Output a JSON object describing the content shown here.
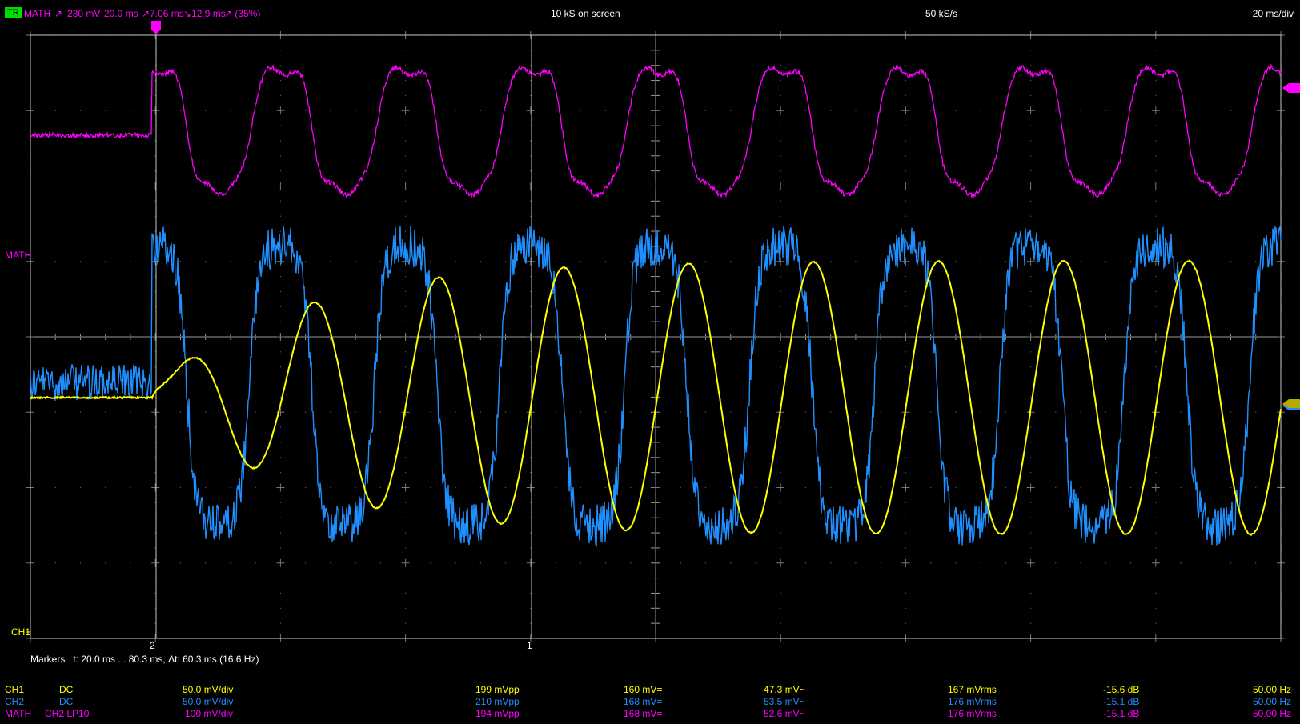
{
  "status": {
    "trigger_badge": "TR",
    "trigger_source": "MATH",
    "trigger_slope_icon": "rising-edge-icon",
    "trigger_level": "230 mV",
    "trigger_time": "20.0 ms",
    "rise_time": "↗7.06 ms",
    "fall_time": "↘12.9 ms",
    "duty_cycle": "↗ (35%)",
    "samples_on_screen": "10 kS on screen",
    "sample_rate": "50 kS/s",
    "timebase": "20 ms/div"
  },
  "labels": {
    "math_label": "MATH",
    "ch1_label": "CH1",
    "marker_2": "2",
    "marker_1": "1"
  },
  "markers_line": {
    "title": "Markers",
    "range": "t: 20.0 ms ... 80.3 ms,  Δt: 60.3 ms (16.6 Hz)"
  },
  "colors": {
    "ch1": "#ffff00",
    "ch2": "#1e90ff",
    "math": "#ff00ff",
    "grid": "#c8c8c8",
    "trigger_badge": "#00e000"
  },
  "measurements": [
    {
      "channel": "CH1",
      "coupling": "DC",
      "scale": "50.0 mV/div",
      "vpp": "199 mVpp",
      "vdc": "160 mV=",
      "vac": "47.3 mV~",
      "vrms": "167 mVrms",
      "db": "-15.6 dB",
      "freq": "50.00 Hz",
      "color": "#ffff00"
    },
    {
      "channel": "CH2",
      "coupling": "DC",
      "scale": "50.0 mV/div",
      "vpp": "210 mVpp",
      "vdc": "168 mV=",
      "vac": "53.5 mV~",
      "vrms": "176 mVrms",
      "db": "-15.1 dB",
      "freq": "50.00 Hz",
      "color": "#1e90ff"
    },
    {
      "channel": "MATH",
      "coupling": "CH2 LP10",
      "scale": "100 mV/div",
      "vpp": "194 mVpp",
      "vdc": "168 mV=",
      "vac": "52.6 mV~",
      "vrms": "176 mVrms",
      "db": "-15.1 dB",
      "freq": "50.00 Hz",
      "color": "#ff00ff"
    }
  ]
}
